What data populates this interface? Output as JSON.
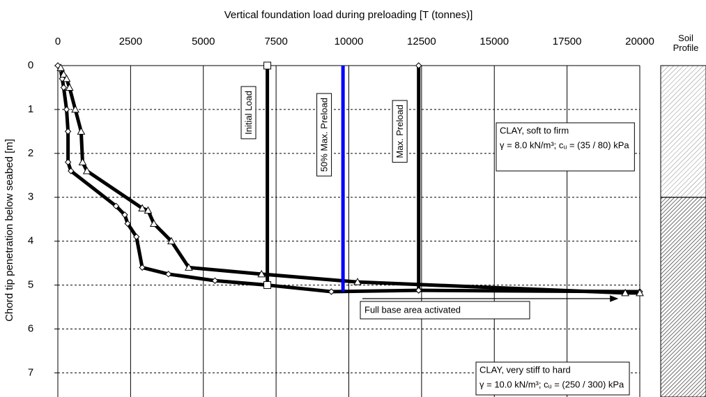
{
  "chart_data": {
    "type": "line",
    "title": "Vertical foundation load during preloading [T (tonnes)]",
    "y_label": "Chord tip penetration below seabed [m]",
    "soil_profile_label": "Soil Profile",
    "xlim": [
      0,
      20000
    ],
    "xticks": [
      0,
      2500,
      5000,
      7500,
      10000,
      12500,
      15000,
      17500,
      20000
    ],
    "ylim": [
      0,
      7.55
    ],
    "yticks": [
      0,
      1,
      2,
      3,
      4,
      5,
      6,
      7
    ],
    "y_inverted": true,
    "grid": true,
    "series": [
      {
        "color": "#000000",
        "marker": "diamond",
        "x": [
          0,
          100,
          150,
          200,
          300,
          350,
          350,
          450,
          2000,
          2300,
          2400,
          2700,
          2900,
          3800,
          5400,
          7200,
          9400,
          12400,
          20000
        ],
        "values": [
          0,
          0.1,
          0.3,
          0.5,
          1.0,
          1.5,
          2.2,
          2.4,
          3.2,
          3.4,
          3.6,
          3.9,
          4.6,
          4.75,
          4.9,
          5.0,
          5.15,
          5.12,
          5.15
        ]
      },
      {
        "color": "#000000",
        "marker": "triangle",
        "x": [
          100,
          200,
          300,
          400,
          600,
          800,
          850,
          1000,
          2900,
          3100,
          3300,
          3900,
          4500,
          7000,
          10300,
          19500,
          20000
        ],
        "values": [
          0.05,
          0.2,
          0.3,
          0.5,
          1.0,
          1.5,
          2.2,
          2.4,
          3.25,
          3.3,
          3.6,
          4.0,
          4.6,
          4.75,
          4.93,
          5.18,
          5.18
        ]
      }
    ],
    "reference_lines": [
      {
        "label": "Initial Load",
        "x": 7200,
        "y_end": 5.0,
        "color": "#000000",
        "marker": "square"
      },
      {
        "label": "50% Max. Preload",
        "x": 9800,
        "y_end": 5.15,
        "color": "#0000ff",
        "marker": "none"
      },
      {
        "label": "Max. Preload",
        "x": 12400,
        "y_end": 5.12,
        "color": "#000000",
        "marker": "diamond"
      }
    ],
    "arrow_label": "Full base area activated",
    "soil_layers": [
      {
        "name": "CLAY, soft to firm",
        "props": "γ = 8.0 kN/m³; cᵤ = (35 / 80) kPa",
        "top": 0
      },
      {
        "name": "CLAY, very stiff to hard",
        "props": "γ = 10.0 kN/m³; cᵤ = (250 / 300) kPa",
        "top": 3
      }
    ]
  }
}
